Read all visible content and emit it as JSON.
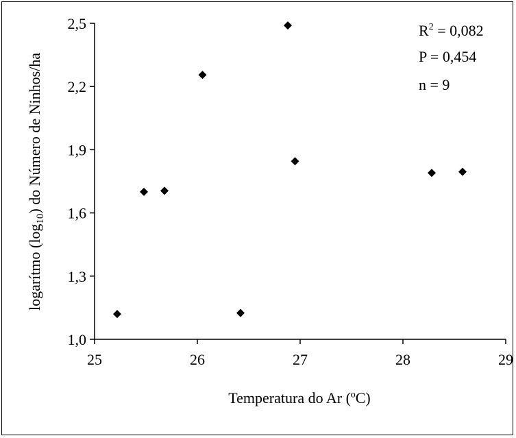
{
  "chart_data": {
    "type": "scatter",
    "xlim": [
      25,
      29
    ],
    "ylim": [
      1.0,
      2.5
    ],
    "x_ticks": [
      "25",
      "26",
      "27",
      "28",
      "29"
    ],
    "y_ticks": [
      "1,0",
      "1,3",
      "1,6",
      "1,9",
      "2,2",
      "2,5"
    ],
    "xlabel": "Temperatura do Ar (ºC)",
    "ylabel_parts": {
      "pre": "logarítmo (log",
      "sub": "10",
      "post": ") do Número de Ninhos/ha"
    },
    "annotations": {
      "r2_base": "R",
      "r2_sup": "2",
      "r2_value": " = 0,082",
      "p": "P = 0,454",
      "n": "n  = 9"
    },
    "marker": "diamond",
    "marker_color": "#000000",
    "points": [
      {
        "x": 25.22,
        "y": 1.12
      },
      {
        "x": 25.48,
        "y": 1.7
      },
      {
        "x": 25.68,
        "y": 1.705
      },
      {
        "x": 26.05,
        "y": 2.255
      },
      {
        "x": 26.42,
        "y": 1.125
      },
      {
        "x": 26.88,
        "y": 2.49
      },
      {
        "x": 26.95,
        "y": 1.845
      },
      {
        "x": 28.28,
        "y": 1.79
      },
      {
        "x": 28.58,
        "y": 1.795
      }
    ]
  }
}
